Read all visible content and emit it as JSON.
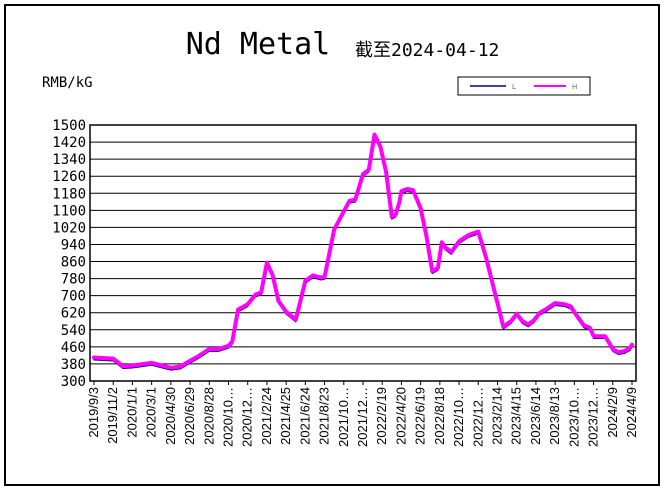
{
  "chart_data": {
    "type": "line",
    "title": "Nd Metal",
    "date_stamp": "截至2024-04-12",
    "ylabel": "RMB/kG",
    "ylim": [
      300,
      1500
    ],
    "yticks": [
      300,
      380,
      460,
      540,
      620,
      700,
      780,
      860,
      940,
      1020,
      1100,
      1180,
      1260,
      1340,
      1420,
      1500
    ],
    "x_tick_labels": [
      "2019/9/3",
      "2019/11/2",
      "2020/1/1",
      "2020/3/1",
      "2020/4/30",
      "2020/6/29",
      "2020/8/28",
      "2020/10…",
      "2020/12…",
      "2021/2/24",
      "2021/4/25",
      "2021/6/24",
      "2021/8/23",
      "2021/10…",
      "2021/12…",
      "2022/2/19",
      "2022/4/20",
      "2022/6/19",
      "2022/8/18",
      "2022/10…",
      "2022/12…",
      "2023/2/14",
      "2023/4/15",
      "2023/6/14",
      "2023/8/13",
      "2023/10…",
      "2023/12…",
      "2024/2/9",
      "2024/4/9"
    ],
    "grid": true,
    "legend_position": "top-right",
    "series": [
      {
        "name": "L",
        "color": "#000080",
        "x": [
          0,
          1,
          1.5,
          2,
          3,
          4,
          4.5,
          5,
          5.4,
          6,
          6.5,
          7,
          7.2,
          7.5,
          8,
          8.4,
          8.7,
          9,
          9.3,
          9.6,
          10,
          10.5,
          11,
          11.4,
          11.8,
          12,
          12.5,
          13,
          13.3,
          13.6,
          14,
          14.3,
          14.6,
          14.9,
          15.2,
          15.5,
          15.7,
          15.9,
          16,
          16.3,
          16.6,
          17,
          17.3,
          17.6,
          17.9,
          18.1,
          18.3,
          18.6,
          19,
          19.5,
          20,
          20.4,
          20.9,
          21.1,
          21.3,
          21.7,
          22,
          22.3,
          22.6,
          22.9,
          23.2,
          23.5,
          24,
          24.5,
          24.8,
          25.1,
          25.5,
          25.8,
          26,
          26.3,
          26.6,
          27,
          27.3,
          27.6,
          27.9,
          28
        ],
        "values": [
          400,
          395,
          360,
          362,
          375,
          352,
          358,
          385,
          405,
          440,
          440,
          455,
          475,
          625,
          650,
          695,
          705,
          845,
          785,
          665,
          615,
          578,
          760,
          785,
          775,
          778,
          1000,
          1085,
          1135,
          1140,
          1260,
          1280,
          1445,
          1390,
          1270,
          1060,
          1070,
          1130,
          1180,
          1190,
          1185,
          1100,
          970,
          805,
          820,
          940,
          915,
          895,
          945,
          975,
          990,
          870,
          690,
          620,
          545,
          570,
          605,
          570,
          555,
          575,
          610,
          625,
          655,
          650,
          640,
          600,
          550,
          540,
          500,
          500,
          500,
          440,
          425,
          430,
          445,
          460
        ]
      },
      {
        "name": "H",
        "color": "#ff00ff",
        "x": [
          0,
          1,
          1.5,
          2,
          3,
          4,
          4.5,
          5,
          5.4,
          6,
          6.5,
          7,
          7.2,
          7.5,
          8,
          8.4,
          8.7,
          9,
          9.3,
          9.6,
          10,
          10.5,
          11,
          11.4,
          11.8,
          12,
          12.5,
          13,
          13.3,
          13.6,
          14,
          14.3,
          14.6,
          14.9,
          15.2,
          15.5,
          15.7,
          15.9,
          16,
          16.3,
          16.6,
          17,
          17.3,
          17.6,
          17.9,
          18.1,
          18.3,
          18.6,
          19,
          19.5,
          20,
          20.4,
          20.9,
          21.1,
          21.3,
          21.7,
          22,
          22.3,
          22.6,
          22.9,
          23.2,
          23.5,
          24,
          24.5,
          24.8,
          25.1,
          25.5,
          25.8,
          26,
          26.3,
          26.6,
          27,
          27.3,
          27.6,
          27.9,
          28
        ],
        "values": [
          410,
          405,
          370,
          372,
          385,
          362,
          368,
          395,
          415,
          450,
          450,
          465,
          485,
          635,
          660,
          705,
          715,
          855,
          795,
          675,
          625,
          588,
          770,
          795,
          785,
          788,
          1010,
          1095,
          1145,
          1150,
          1270,
          1290,
          1455,
          1400,
          1280,
          1070,
          1080,
          1140,
          1190,
          1200,
          1195,
          1110,
          980,
          815,
          830,
          950,
          925,
          905,
          955,
          985,
          1000,
          880,
          700,
          630,
          555,
          580,
          615,
          580,
          565,
          585,
          620,
          635,
          665,
          660,
          650,
          610,
          560,
          550,
          510,
          510,
          510,
          450,
          435,
          440,
          455,
          470
        ]
      }
    ]
  }
}
